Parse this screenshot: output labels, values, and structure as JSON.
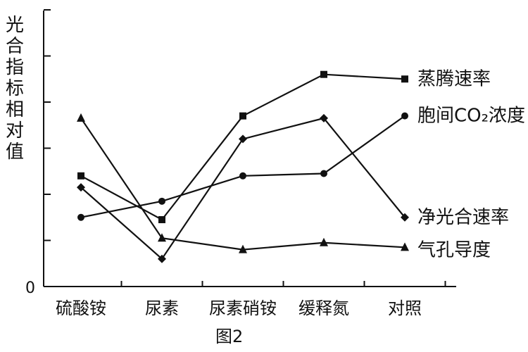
{
  "chart_data": {
    "type": "line",
    "title": "",
    "caption": "图2",
    "ylabel": "光合指标相对值",
    "xlabel": "",
    "y_origin_label": "0",
    "ylim": [
      0,
      6
    ],
    "categories": [
      "硫酸铵",
      "尿素",
      "尿素硝铵",
      "缓释氮",
      "对照"
    ],
    "grid": false,
    "legend": "inline-right",
    "series": [
      {
        "name": "蒸腾速率",
        "marker": "square",
        "values": [
          2.4,
          1.45,
          3.7,
          4.6,
          4.5
        ]
      },
      {
        "name": "胞间CO₂浓度",
        "marker": "circle",
        "values": [
          1.5,
          1.85,
          2.4,
          2.45,
          3.7
        ]
      },
      {
        "name": "净光合速率",
        "marker": "diamond",
        "values": [
          2.15,
          0.6,
          3.2,
          3.65,
          1.5
        ]
      },
      {
        "name": "气孔导度",
        "marker": "triangle",
        "values": [
          3.65,
          1.05,
          0.8,
          0.95,
          0.85
        ]
      }
    ]
  }
}
